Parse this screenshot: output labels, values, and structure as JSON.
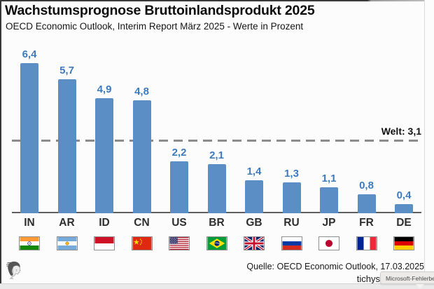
{
  "header": {
    "title": "Wachstumsprognose Bruttoinlandsprodukt 2025",
    "subtitle": "OECD Economic Outlook, Interim Report März 2025 - Werte in Prozent"
  },
  "chart_data": {
    "type": "bar",
    "title": "Wachstumsprognose Bruttoinlandsprodukt 2025",
    "subtitle": "OECD Economic Outlook, Interim Report März 2025 - Werte in Prozent",
    "unit": "Prozent",
    "categories": [
      "IN",
      "AR",
      "ID",
      "CN",
      "US",
      "BR",
      "GB",
      "RU",
      "JP",
      "FR",
      "DE"
    ],
    "values": [
      6.4,
      5.7,
      4.9,
      4.8,
      2.2,
      2.1,
      1.4,
      1.3,
      1.1,
      0.8,
      0.4
    ],
    "value_labels": [
      "6,4",
      "5,7",
      "4,9",
      "4,8",
      "2,2",
      "2,1",
      "1,4",
      "1,3",
      "1,1",
      "0,8",
      "0,4"
    ],
    "flag_names": [
      "India",
      "Argentina",
      "Indonesia",
      "China",
      "USA",
      "Brazil",
      "United Kingdom",
      "Russia",
      "Japan",
      "France",
      "Germany"
    ],
    "reference_line": {
      "label": "Welt: 3,1",
      "value": 3.1,
      "style": "dashed"
    },
    "bar_color": "#5a8ec5",
    "value_label_color": "#3e7bbd",
    "ylim": [
      0,
      7
    ],
    "grid": false,
    "legend": false
  },
  "footer": {
    "source": "Quelle: OECD Economic Outlook, 17.03.2025",
    "watermark": "tichys"
  },
  "tooltip": {
    "text": "Microsoft-Fehlerbe"
  }
}
